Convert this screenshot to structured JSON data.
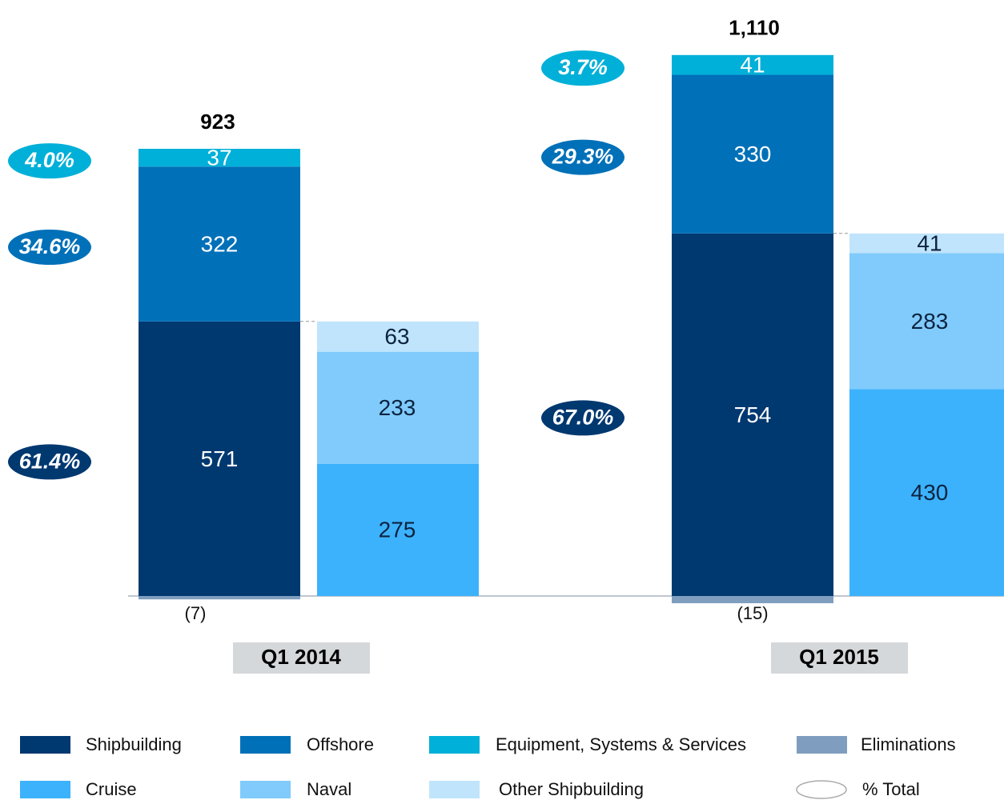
{
  "chart_data": {
    "type": "bar",
    "stacked": true,
    "categories": [
      "Q1 2014",
      "Q1 2015"
    ],
    "series": [
      {
        "name": "Shipbuilding",
        "color": "#003870",
        "values": [
          571,
          754
        ],
        "shares": [
          61.4,
          67.0
        ],
        "share_labels": [
          "61.4%",
          "67.0%"
        ]
      },
      {
        "name": "Offshore",
        "color": "#0070b8",
        "values": [
          322,
          330
        ],
        "shares": [
          34.6,
          29.3
        ],
        "share_labels": [
          "34.6%",
          "29.3%"
        ]
      },
      {
        "name": "Equipment, Systems & Services",
        "color": "#00b0d8",
        "values": [
          37,
          41
        ],
        "shares": [
          4.0,
          3.7
        ],
        "share_labels": [
          "4.0%",
          "3.7%"
        ]
      },
      {
        "name": "Eliminations",
        "color": "#7f9ebf",
        "values": [
          -7,
          -15
        ],
        "value_labels": [
          "(7)",
          "(15)"
        ]
      }
    ],
    "breakdown": [
      {
        "name": "Cruise",
        "color": "#3cb2fc",
        "values": [
          275,
          430
        ]
      },
      {
        "name": "Naval",
        "color": "#80cbfc",
        "values": [
          233,
          283
        ]
      },
      {
        "name": "Other Shipbuilding",
        "color": "#c0e4fc",
        "values": [
          63,
          41
        ]
      }
    ],
    "totals": {
      "values": [
        923,
        1110
      ],
      "value_labels": [
        "923",
        "1,110"
      ]
    },
    "share_legend": "% Total"
  }
}
